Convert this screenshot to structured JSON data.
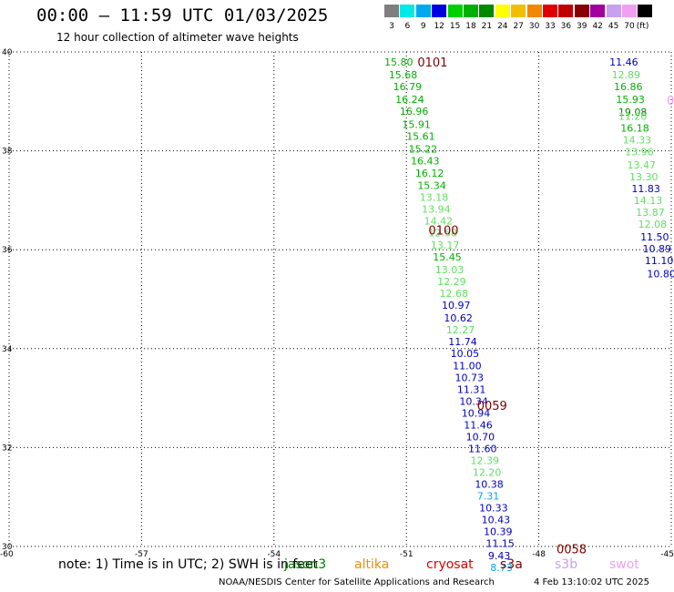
{
  "header": {
    "title": "00:00 – 11:59 UTC 01/03/2025",
    "subtitle": "12 hour collection of altimeter wave heights"
  },
  "legend": {
    "unit": "(ft)",
    "items": [
      {
        "label": "3",
        "color": "#7f7f7f"
      },
      {
        "label": "6",
        "color": "#00e8e8"
      },
      {
        "label": "9",
        "color": "#00a8f0"
      },
      {
        "label": "12",
        "color": "#0000e0"
      },
      {
        "label": "15",
        "color": "#00d000"
      },
      {
        "label": "18",
        "color": "#00b000"
      },
      {
        "label": "21",
        "color": "#008800"
      },
      {
        "label": "24",
        "color": "#ffff00"
      },
      {
        "label": "27",
        "color": "#f0c000"
      },
      {
        "label": "30",
        "color": "#f08800"
      },
      {
        "label": "33",
        "color": "#e00000"
      },
      {
        "label": "36",
        "color": "#c00000"
      },
      {
        "label": "39",
        "color": "#880000"
      },
      {
        "label": "42",
        "color": "#a000a0"
      },
      {
        "label": "45",
        "color": "#c8a0f0"
      },
      {
        "label": "70",
        "color": "#f0a0f0"
      },
      {
        "label": "",
        "color": "#000000"
      }
    ]
  },
  "map": {
    "xlim": [
      -60,
      -45
    ],
    "ylim": [
      30,
      40
    ],
    "x_ticks": [
      -60,
      -57,
      -54,
      -51,
      -48,
      -45
    ],
    "x_tick_labels": [
      "-60",
      "-57",
      "-54",
      "-51",
      "-48",
      "-45"
    ],
    "y_ticks": [
      30,
      32,
      34,
      36,
      38,
      40
    ],
    "y_tick_labels": [
      "30",
      "32",
      "34",
      "36",
      "38",
      "40"
    ],
    "grid": true,
    "pass_labels": [
      {
        "text": "0101",
        "lon": -50.75,
        "lat": 39.8,
        "color": "#800000"
      },
      {
        "text": "0100",
        "lon": -50.5,
        "lat": 36.4,
        "color": "#800000"
      },
      {
        "text": "0059",
        "lon": -49.4,
        "lat": 32.85,
        "color": "#800000"
      },
      {
        "text": "0058",
        "lon": -47.6,
        "lat": 29.95,
        "color": "#800000"
      },
      {
        "text": "09",
        "lon": -45.1,
        "lat": 39.02,
        "color": "#f0a0f0"
      }
    ],
    "tracks": [
      {
        "name": "track-west",
        "points": [
          {
            "lon": -51.5,
            "lat": 39.8,
            "v": "15.80",
            "c": "#00b000"
          },
          {
            "lon": -51.4,
            "lat": 39.54,
            "v": "15.68",
            "c": "#00b000"
          },
          {
            "lon": -51.3,
            "lat": 39.3,
            "v": "16.79",
            "c": "#00b000"
          },
          {
            "lon": -51.25,
            "lat": 39.04,
            "v": "16.24",
            "c": "#00b000"
          },
          {
            "lon": -51.15,
            "lat": 38.8,
            "v": "16.96",
            "c": "#00b000"
          },
          {
            "lon": -51.1,
            "lat": 38.54,
            "v": "15.91",
            "c": "#00b000"
          },
          {
            "lon": -51.0,
            "lat": 38.3,
            "v": "15.61",
            "c": "#00b000"
          },
          {
            "lon": -50.95,
            "lat": 38.04,
            "v": "15.22",
            "c": "#00b000"
          },
          {
            "lon": -50.9,
            "lat": 37.8,
            "v": "16.43",
            "c": "#00b000"
          },
          {
            "lon": -50.8,
            "lat": 37.55,
            "v": "16.12",
            "c": "#00b000"
          },
          {
            "lon": -50.75,
            "lat": 37.3,
            "v": "15.34",
            "c": "#00b000"
          },
          {
            "lon": -50.7,
            "lat": 37.06,
            "v": "13.18",
            "c": "#60e060"
          },
          {
            "lon": -50.65,
            "lat": 36.82,
            "v": "13.94",
            "c": "#60e060"
          },
          {
            "lon": -50.6,
            "lat": 36.58,
            "v": "14.42",
            "c": "#60e060"
          },
          {
            "lon": -50.5,
            "lat": 36.34,
            "v": "12.58",
            "c": "#60e060"
          },
          {
            "lon": -50.45,
            "lat": 36.1,
            "v": "13.17",
            "c": "#60e060"
          },
          {
            "lon": -50.4,
            "lat": 35.86,
            "v": "15.45",
            "c": "#00b000"
          },
          {
            "lon": -50.35,
            "lat": 35.6,
            "v": "13.03",
            "c": "#60e060"
          },
          {
            "lon": -50.3,
            "lat": 35.36,
            "v": "12.29",
            "c": "#60e060"
          },
          {
            "lon": -50.25,
            "lat": 35.12,
            "v": "12.68",
            "c": "#60e060"
          },
          {
            "lon": -50.2,
            "lat": 34.88,
            "v": "10.97",
            "c": "#0000c0"
          },
          {
            "lon": -50.15,
            "lat": 34.62,
            "v": "10.62",
            "c": "#0000c0"
          },
          {
            "lon": -50.1,
            "lat": 34.38,
            "v": "12.27",
            "c": "#60e060"
          },
          {
            "lon": -50.05,
            "lat": 34.14,
            "v": "11.74",
            "c": "#0000c0"
          },
          {
            "lon": -50.0,
            "lat": 33.9,
            "v": "10.05",
            "c": "#0000c0"
          },
          {
            "lon": -49.95,
            "lat": 33.66,
            "v": "11.00",
            "c": "#0000c0"
          },
          {
            "lon": -49.9,
            "lat": 33.42,
            "v": "10.73",
            "c": "#0000c0"
          },
          {
            "lon": -49.85,
            "lat": 33.18,
            "v": "11.31",
            "c": "#0000c0"
          },
          {
            "lon": -49.8,
            "lat": 32.94,
            "v": "10.34",
            "c": "#0000c0"
          },
          {
            "lon": -49.75,
            "lat": 32.7,
            "v": "10.94",
            "c": "#0000c0"
          },
          {
            "lon": -49.7,
            "lat": 32.46,
            "v": "11.46",
            "c": "#0000c0"
          },
          {
            "lon": -49.65,
            "lat": 32.22,
            "v": "10.70",
            "c": "#0000c0"
          },
          {
            "lon": -49.6,
            "lat": 31.98,
            "v": "11.60",
            "c": "#0000c0"
          },
          {
            "lon": -49.55,
            "lat": 31.74,
            "v": "12.39",
            "c": "#60e060"
          },
          {
            "lon": -49.5,
            "lat": 31.5,
            "v": "12.20",
            "c": "#60e060"
          },
          {
            "lon": -49.45,
            "lat": 31.26,
            "v": "10.38",
            "c": "#0000c0"
          },
          {
            "lon": -49.4,
            "lat": 31.02,
            "v": "7.31",
            "c": "#00a8f0"
          },
          {
            "lon": -49.35,
            "lat": 30.78,
            "v": "10.33",
            "c": "#0000c0"
          },
          {
            "lon": -49.3,
            "lat": 30.54,
            "v": "10.43",
            "c": "#0000c0"
          },
          {
            "lon": -49.25,
            "lat": 30.3,
            "v": "10.39",
            "c": "#0000c0"
          },
          {
            "lon": -49.2,
            "lat": 30.06,
            "v": "11.15",
            "c": "#0000c0"
          },
          {
            "lon": -49.15,
            "lat": 29.82,
            "v": "9.43",
            "c": "#0000c0"
          },
          {
            "lon": -49.1,
            "lat": 29.58,
            "v": "8.73",
            "c": "#00a8f0"
          }
        ]
      },
      {
        "name": "track-east",
        "points": [
          {
            "lon": -46.4,
            "lat": 39.8,
            "v": "11.46",
            "c": "#0000c0"
          },
          {
            "lon": -46.35,
            "lat": 39.54,
            "v": "12.89",
            "c": "#60e060"
          },
          {
            "lon": -46.3,
            "lat": 39.3,
            "v": "16.86",
            "c": "#00b000"
          },
          {
            "lon": -46.25,
            "lat": 39.04,
            "v": "15.93",
            "c": "#00b000"
          },
          {
            "lon": -46.2,
            "lat": 38.78,
            "v": "19.08",
            "c": "#008800"
          },
          {
            "lon": -46.2,
            "lat": 38.7,
            "v": "11.20",
            "c": "#60e060"
          },
          {
            "lon": -46.15,
            "lat": 38.46,
            "v": "16.18",
            "c": "#00b000"
          },
          {
            "lon": -46.1,
            "lat": 38.22,
            "v": "14.33",
            "c": "#60e060"
          },
          {
            "lon": -46.05,
            "lat": 37.98,
            "v": "13.96",
            "c": "#60e060"
          },
          {
            "lon": -46.0,
            "lat": 37.72,
            "v": "13.47",
            "c": "#60e060"
          },
          {
            "lon": -45.95,
            "lat": 37.48,
            "v": "13.30",
            "c": "#60e060"
          },
          {
            "lon": -45.9,
            "lat": 37.24,
            "v": "11.83",
            "c": "#0000c0"
          },
          {
            "lon": -45.85,
            "lat": 37.0,
            "v": "14.13",
            "c": "#60e060"
          },
          {
            "lon": -45.8,
            "lat": 36.76,
            "v": "13.87",
            "c": "#60e060"
          },
          {
            "lon": -45.75,
            "lat": 36.52,
            "v": "12.08",
            "c": "#60e060"
          },
          {
            "lon": -45.7,
            "lat": 36.26,
            "v": "11.50",
            "c": "#0000c0"
          },
          {
            "lon": -45.65,
            "lat": 36.02,
            "v": "10.89",
            "c": "#0000c0"
          },
          {
            "lon": -45.6,
            "lat": 35.78,
            "v": "11.10",
            "c": "#0000c0"
          },
          {
            "lon": -45.55,
            "lat": 35.52,
            "v": "10.80",
            "c": "#0000c0"
          }
        ]
      }
    ]
  },
  "note": {
    "text": "note:  1) Time is in UTC;  2) SWH is in feet",
    "satellites": [
      {
        "name": "jason3",
        "color": "#008000"
      },
      {
        "name": "altika",
        "color": "#f09000"
      },
      {
        "name": "cryosat",
        "color": "#e00000"
      },
      {
        "name": "s3a",
        "color": "#800000"
      },
      {
        "name": "s3b",
        "color": "#c8a0f0"
      },
      {
        "name": "swot",
        "color": "#f0a0f0"
      }
    ]
  },
  "footer": {
    "credit": "NOAA/NESDIS Center for Satellite Applications and Research",
    "timestamp": "4 Feb 13:10:02 UTC 2025"
  }
}
